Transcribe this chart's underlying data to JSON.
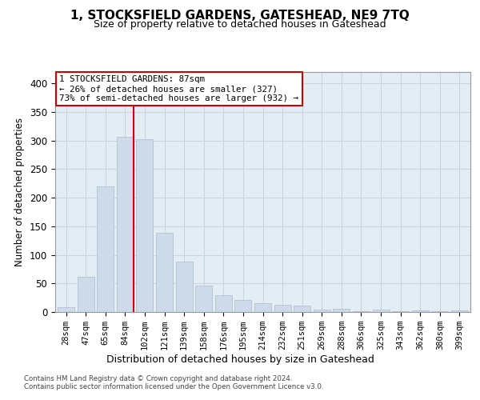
{
  "title": "1, STOCKSFIELD GARDENS, GATESHEAD, NE9 7TQ",
  "subtitle": "Size of property relative to detached houses in Gateshead",
  "xlabel": "Distribution of detached houses by size in Gateshead",
  "ylabel": "Number of detached properties",
  "bar_color": "#ccdaea",
  "bar_edge_color": "#aabccc",
  "grid_color": "#c8d4de",
  "background_color": "#e4ecf4",
  "categories": [
    "28sqm",
    "47sqm",
    "65sqm",
    "84sqm",
    "102sqm",
    "121sqm",
    "139sqm",
    "158sqm",
    "176sqm",
    "195sqm",
    "214sqm",
    "232sqm",
    "251sqm",
    "269sqm",
    "288sqm",
    "306sqm",
    "325sqm",
    "343sqm",
    "362sqm",
    "380sqm",
    "399sqm"
  ],
  "values": [
    8,
    62,
    220,
    307,
    302,
    138,
    88,
    46,
    30,
    21,
    15,
    13,
    11,
    4,
    5,
    1,
    4,
    1,
    3,
    1,
    3
  ],
  "marker_bar_idx": 3,
  "marker_label_line1": "1 STOCKSFIELD GARDENS: 87sqm",
  "marker_label_line2": "← 26% of detached houses are smaller (327)",
  "marker_label_line3": "73% of semi-detached houses are larger (932) →",
  "annotation_box_color": "#ffffff",
  "annotation_border_color": "#cc0000",
  "marker_line_color": "#cc0000",
  "footer_line1": "Contains HM Land Registry data © Crown copyright and database right 2024.",
  "footer_line2": "Contains public sector information licensed under the Open Government Licence v3.0.",
  "ylim": [
    0,
    420
  ],
  "yticks": [
    0,
    50,
    100,
    150,
    200,
    250,
    300,
    350,
    400
  ]
}
